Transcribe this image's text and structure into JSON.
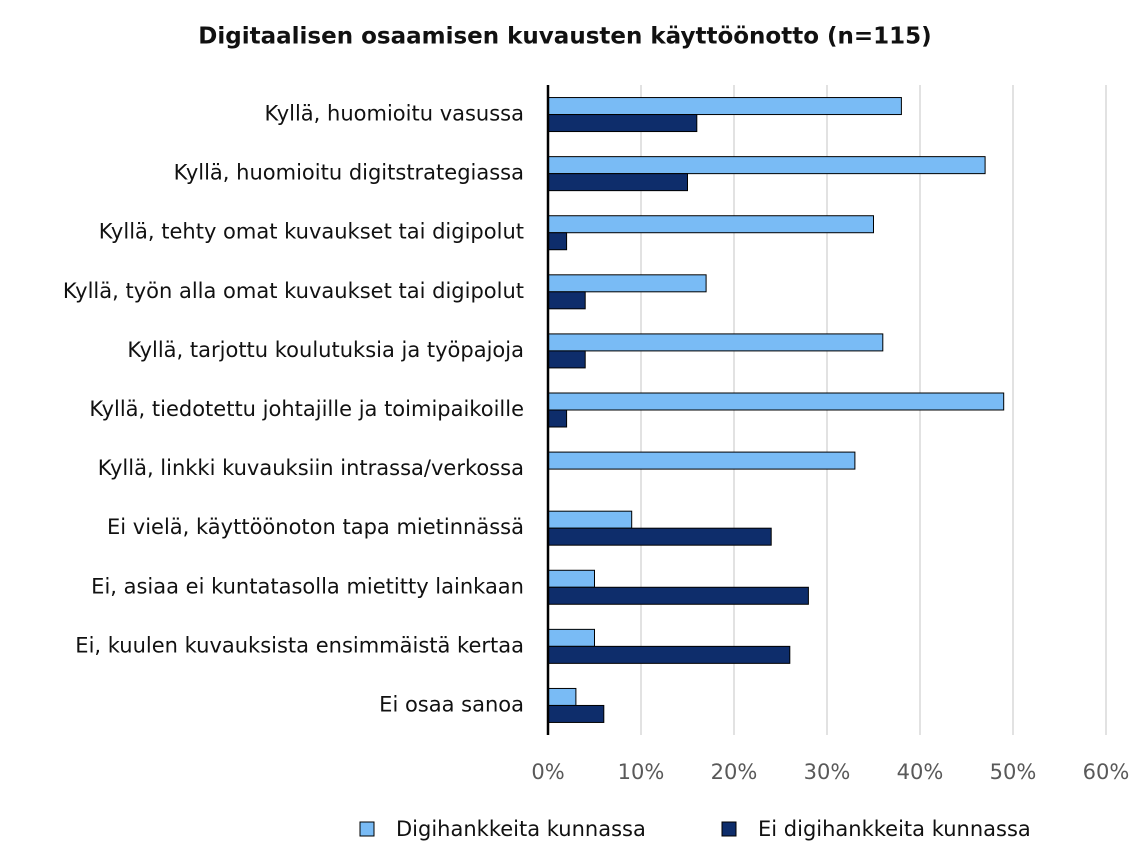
{
  "chart_data": {
    "type": "bar",
    "orientation": "horizontal",
    "title": "Digitaalisen osaamisen kuvausten käyttöönotto  (n=115)",
    "categories": [
      "Kyllä, huomioitu vasussa",
      "Kyllä, huomioitu digitstrategiassa",
      "Kyllä, tehty omat kuvaukset tai digipolut",
      "Kyllä, työn alla omat kuvaukset tai digipolut",
      "Kyllä, tarjottu koulutuksia ja työpajoja",
      "Kyllä, tiedotettu johtajille ja toimipaikoille",
      "Kyllä, linkki kuvauksiin intrassa/verkossa",
      "Ei vielä, käyttöönoton tapa mietinnässä",
      "Ei, asiaa ei kuntatasolla mietitty lainkaan",
      "Ei, kuulen kuvauksista ensimmäistä kertaa",
      "Ei osaa sanoa"
    ],
    "series": [
      {
        "name": "Digihankkeita kunnassa",
        "color": "#79bbf5",
        "values": [
          38,
          47,
          35,
          17,
          36,
          49,
          33,
          9,
          5,
          5,
          3
        ]
      },
      {
        "name": "Ei digihankkeita kunnassa",
        "color": "#0e2d6b",
        "values": [
          16,
          15,
          2,
          4,
          4,
          2,
          0,
          24,
          28,
          26,
          6
        ]
      }
    ],
    "xlim": [
      0,
      60
    ],
    "xticks": [
      {
        "value": 0,
        "label": "0%"
      },
      {
        "value": 10,
        "label": "10%"
      },
      {
        "value": 20,
        "label": "20%"
      },
      {
        "value": 30,
        "label": "30%"
      },
      {
        "value": 40,
        "label": "40%"
      },
      {
        "value": 50,
        "label": "50%"
      },
      {
        "value": 60,
        "label": "60%"
      }
    ],
    "grid": true,
    "legend": "bottom"
  }
}
